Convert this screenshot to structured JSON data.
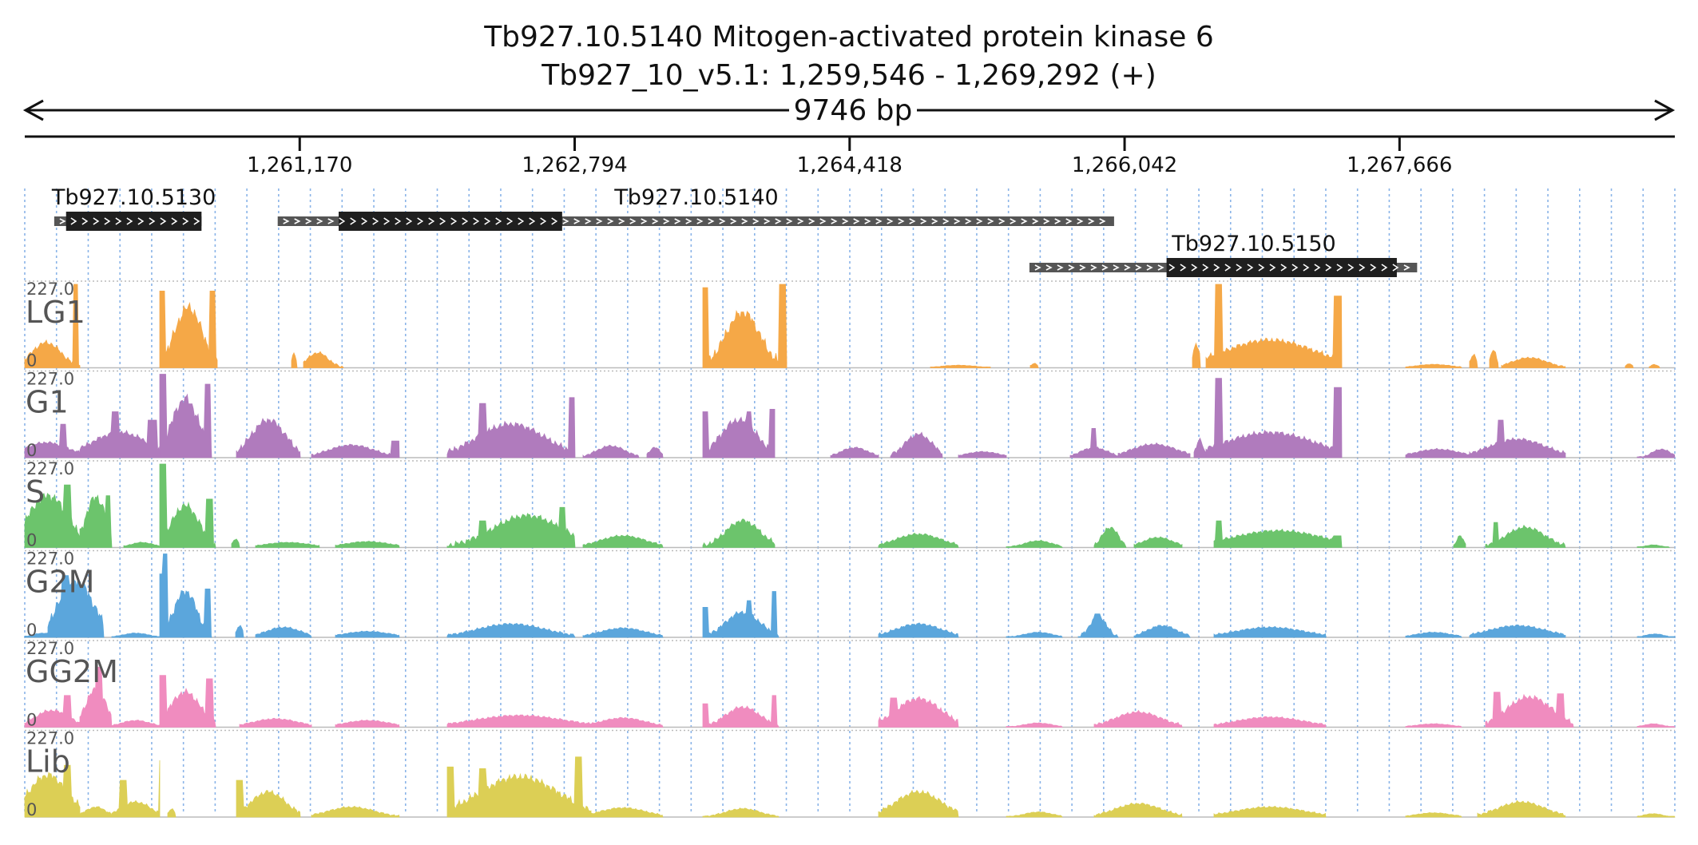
{
  "header": {
    "title": "Tb927.10.5140  Mitogen-activated protein kinase 6",
    "location": "Tb927_10_v5.1: 1,259,546 - 1,269,292 (+)",
    "span": "9746 bp"
  },
  "region": {
    "start": 1259546,
    "end": 1269292
  },
  "ruler": {
    "ticks": [
      {
        "pos": 1261170,
        "label": "1,261,170"
      },
      {
        "pos": 1262794,
        "label": "1,262,794"
      },
      {
        "pos": 1264418,
        "label": "1,264,418"
      },
      {
        "pos": 1266042,
        "label": "1,266,042"
      },
      {
        "pos": 1267666,
        "label": "1,267,666"
      }
    ]
  },
  "genes": [
    {
      "id": "Tb927.10.5130",
      "row": 0,
      "utr": [
        1259720,
        1260590
      ],
      "cds": [
        1259790,
        1260590
      ]
    },
    {
      "id": "Tb927.10.5140",
      "row": 0,
      "utr": [
        1261040,
        1265980
      ],
      "cds": [
        1261400,
        1262720
      ]
    },
    {
      "id": "Tb927.10.5150",
      "row": 1,
      "utr": [
        1265480,
        1267770
      ],
      "cds": [
        1266290,
        1267650
      ]
    }
  ],
  "tracks": [
    {
      "name": "LG1",
      "max_label": "227.0",
      "min_label": "0",
      "color": "#f5a847"
    },
    {
      "name": "G1",
      "max_label": "227.0",
      "min_label": "0",
      "color": "#b07bbd"
    },
    {
      "name": "S",
      "max_label": "227.0",
      "min_label": "0",
      "color": "#6cc46c"
    },
    {
      "name": "G2M",
      "max_label": "227.0",
      "min_label": "0",
      "color": "#5ba6dc"
    },
    {
      "name": "GG2M",
      "max_label": "227.0",
      "min_label": "0",
      "color": "#f08cbf"
    },
    {
      "name": "Lib",
      "max_label": "227.0",
      "min_label": "0",
      "color": "#dccf55"
    }
  ],
  "colors": {
    "cds": "#1f1f1f",
    "utr": "#555555",
    "grid": "#8ab4e8"
  }
}
